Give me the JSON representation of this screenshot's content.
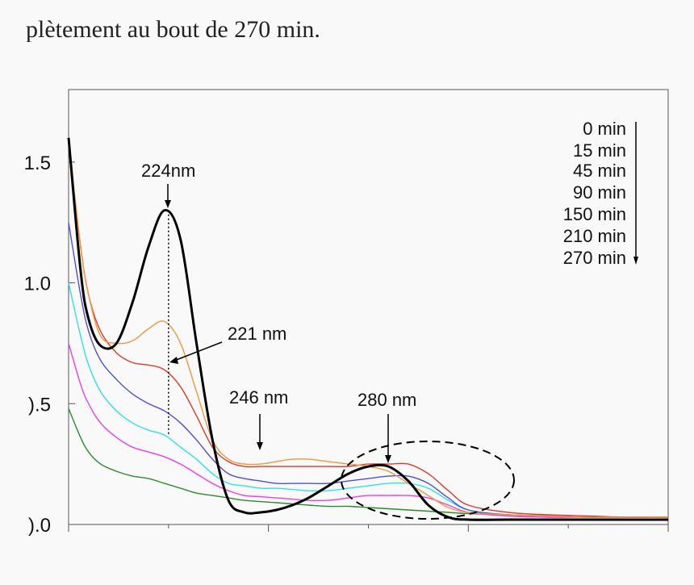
{
  "caption": "plètement au bout de 270 min.",
  "chart_data": {
    "type": "line",
    "title": "",
    "xlabel": "",
    "ylabel": "",
    "xlim": [
      200,
      350
    ],
    "ylim": [
      0,
      1.8
    ],
    "y_ticks": [
      0.0,
      0.5,
      1.0,
      1.5
    ],
    "y_tick_labels": [
      ").0",
      ").5",
      "1.0",
      "1.5"
    ],
    "x_ticks": [
      200,
      225,
      250,
      275,
      300,
      325,
      350
    ],
    "legend": {
      "placement": "top-right",
      "entries": [
        "0 min",
        "15 min",
        "45 min",
        "90 min",
        "150 min",
        "210 min",
        "270 min"
      ]
    },
    "annotations": [
      {
        "label": "224nm",
        "target": [
          225,
          1.3
        ]
      },
      {
        "label": "221 nm",
        "target": [
          225,
          0.66
        ]
      },
      {
        "label": "246 nm",
        "target": [
          247,
          0.3
        ]
      },
      {
        "label": "280 nm",
        "target": [
          280,
          0.25
        ]
      }
    ],
    "series": [
      {
        "color": "#000000",
        "x": [
          200,
          203,
          205,
          208,
          212,
          216,
          220,
          224,
          228,
          232,
          236,
          240,
          244,
          248,
          252,
          256,
          260,
          265,
          270,
          275,
          280,
          285,
          290,
          295,
          300,
          310,
          320,
          330,
          340,
          350
        ],
        "values": [
          1.6,
          1.05,
          0.85,
          0.74,
          0.75,
          0.92,
          1.15,
          1.3,
          1.18,
          0.75,
          0.35,
          0.1,
          0.05,
          0.05,
          0.06,
          0.08,
          0.11,
          0.16,
          0.21,
          0.24,
          0.24,
          0.18,
          0.08,
          0.03,
          0.02,
          0.02,
          0.02,
          0.02,
          0.02,
          0.02
        ]
      },
      {
        "color": "#f0983e",
        "x": [
          200,
          203,
          205,
          208,
          212,
          216,
          220,
          224,
          228,
          232,
          236,
          240,
          244,
          248,
          252,
          256,
          260,
          265,
          270,
          275,
          280,
          285,
          290,
          295,
          300,
          310,
          320,
          330,
          340,
          350
        ],
        "values": [
          1.6,
          1.15,
          0.95,
          0.78,
          0.75,
          0.76,
          0.81,
          0.84,
          0.75,
          0.55,
          0.35,
          0.27,
          0.25,
          0.25,
          0.26,
          0.27,
          0.27,
          0.26,
          0.25,
          0.24,
          0.22,
          0.17,
          0.12,
          0.07,
          0.05,
          0.04,
          0.035,
          0.03,
          0.03,
          0.03
        ]
      },
      {
        "color": "#e03a2a",
        "x": [
          200,
          203,
          205,
          208,
          212,
          216,
          220,
          224,
          228,
          232,
          236,
          240,
          244,
          248,
          252,
          256,
          260,
          265,
          270,
          275,
          280,
          285,
          290,
          295,
          300,
          310,
          320,
          330,
          340,
          350
        ],
        "values": [
          1.58,
          1.15,
          0.95,
          0.8,
          0.71,
          0.67,
          0.66,
          0.64,
          0.57,
          0.45,
          0.32,
          0.26,
          0.24,
          0.24,
          0.24,
          0.24,
          0.24,
          0.24,
          0.24,
          0.25,
          0.25,
          0.25,
          0.21,
          0.14,
          0.08,
          0.05,
          0.04,
          0.035,
          0.03,
          0.03
        ]
      },
      {
        "color": "#4f4ee0",
        "x": [
          200,
          203,
          205,
          208,
          212,
          216,
          220,
          224,
          228,
          232,
          236,
          240,
          244,
          248,
          252,
          256,
          260,
          265,
          270,
          275,
          280,
          285,
          290,
          295,
          300,
          310,
          320,
          330,
          340,
          350
        ],
        "values": [
          1.25,
          0.95,
          0.8,
          0.68,
          0.6,
          0.54,
          0.5,
          0.47,
          0.42,
          0.35,
          0.27,
          0.21,
          0.19,
          0.18,
          0.17,
          0.17,
          0.17,
          0.17,
          0.18,
          0.19,
          0.2,
          0.2,
          0.17,
          0.11,
          0.06,
          0.04,
          0.035,
          0.03,
          0.03,
          0.03
        ]
      },
      {
        "color": "#2ee0ec",
        "x": [
          200,
          203,
          205,
          208,
          212,
          216,
          220,
          224,
          228,
          232,
          236,
          240,
          244,
          248,
          252,
          256,
          260,
          265,
          270,
          275,
          280,
          285,
          290,
          295,
          300,
          310,
          320,
          330,
          340,
          350
        ],
        "values": [
          1.0,
          0.78,
          0.66,
          0.55,
          0.47,
          0.42,
          0.39,
          0.37,
          0.32,
          0.27,
          0.21,
          0.17,
          0.16,
          0.15,
          0.15,
          0.145,
          0.14,
          0.14,
          0.15,
          0.16,
          0.17,
          0.17,
          0.15,
          0.1,
          0.06,
          0.04,
          0.035,
          0.03,
          0.03,
          0.03
        ]
      },
      {
        "color": "#ee3ee8",
        "x": [
          200,
          203,
          205,
          208,
          212,
          216,
          220,
          224,
          228,
          232,
          236,
          240,
          244,
          248,
          252,
          256,
          260,
          265,
          270,
          275,
          280,
          285,
          290,
          295,
          300,
          310,
          320,
          330,
          340,
          350
        ],
        "values": [
          0.75,
          0.58,
          0.5,
          0.42,
          0.36,
          0.32,
          0.3,
          0.28,
          0.25,
          0.21,
          0.17,
          0.14,
          0.12,
          0.115,
          0.11,
          0.105,
          0.1,
          0.1,
          0.11,
          0.12,
          0.12,
          0.12,
          0.11,
          0.08,
          0.05,
          0.035,
          0.03,
          0.03,
          0.03,
          0.03
        ]
      },
      {
        "color": "#2e8b2e",
        "x": [
          200,
          203,
          205,
          208,
          212,
          216,
          220,
          224,
          228,
          232,
          236,
          240,
          244,
          248,
          252,
          256,
          260,
          265,
          270,
          275,
          280,
          285,
          290,
          295,
          300,
          310,
          320,
          330,
          340,
          350
        ],
        "values": [
          0.48,
          0.36,
          0.3,
          0.25,
          0.22,
          0.2,
          0.19,
          0.17,
          0.15,
          0.13,
          0.12,
          0.11,
          0.1,
          0.095,
          0.09,
          0.085,
          0.08,
          0.075,
          0.075,
          0.07,
          0.065,
          0.06,
          0.055,
          0.05,
          0.045,
          0.04,
          0.035,
          0.03,
          0.03,
          0.03
        ]
      }
    ]
  }
}
